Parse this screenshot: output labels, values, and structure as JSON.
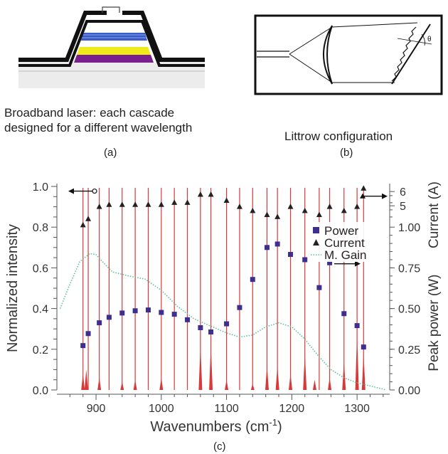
{
  "panel_a": {
    "caption_line1": "Broadband laser: each cascade",
    "caption_line2": "designed for a different wavelength",
    "tag": "(a)",
    "layer_colors": [
      "#3a5cc8",
      "#f2ea18",
      "#7a1f8e"
    ]
  },
  "panel_b": {
    "caption": "Littrow configuration",
    "tag": "(b)",
    "angle_label": "θ"
  },
  "panel_c": {
    "tag": "(c)",
    "chart_data": {
      "type": "line",
      "xlabel_main": "Wavenumbers (cm",
      "xlabel_exp": "-1",
      "xlabel_end": ")",
      "ylabel_left": "Normalized intensity",
      "ylabel_right_top": "Current (A)",
      "ylabel_right_bottom": "Peak power (W)",
      "xlim": [
        840,
        1350
      ],
      "ylim": [
        0,
        1.0
      ],
      "x_ticks": [
        900,
        1000,
        1100,
        1200,
        1300
      ],
      "y_ticks_left": [
        0.0,
        0.2,
        0.4,
        0.6,
        0.8,
        1.0
      ],
      "y_ticks_left_labels": [
        "0.0",
        "0.2",
        "0.4",
        "0.6",
        "0.8",
        "1.0"
      ],
      "current_ticks": [
        {
          "label": "6",
          "y": 0.975
        },
        {
          "label": "5",
          "y": 0.905
        }
      ],
      "power_ticks": [
        {
          "label": "1.00",
          "y": 0.8
        },
        {
          "label": "0.75",
          "y": 0.6
        },
        {
          "label": "0.50",
          "y": 0.4
        },
        {
          "label": "0.25",
          "y": 0.2
        },
        {
          "label": "0.00",
          "y": 0.0
        }
      ],
      "legend": [
        {
          "name": "Power",
          "marker": "square",
          "color": "#3c2f8f"
        },
        {
          "name": "Current",
          "marker": "triangle",
          "color": "#222222"
        },
        {
          "name": "M. Gain",
          "marker": "dotted-line",
          "color": "#5cbf9b"
        }
      ],
      "laser_lines": {
        "color": "#d63a3a",
        "x": [
          880,
          888,
          905,
          920,
          940,
          960,
          980,
          1000,
          1020,
          1040,
          1060,
          1076,
          1100,
          1120,
          1140,
          1162,
          1178,
          1198,
          1220,
          1242,
          1258,
          1280,
          1300,
          1310
        ]
      },
      "spectrum_peaks": [
        {
          "x": 880,
          "y": 0.08
        },
        {
          "x": 885,
          "y": 0.1
        },
        {
          "x": 905,
          "y": 0.06
        },
        {
          "x": 940,
          "y": 0.04
        },
        {
          "x": 960,
          "y": 0.05
        },
        {
          "x": 1000,
          "y": 0.06
        },
        {
          "x": 1060,
          "y": 0.22
        },
        {
          "x": 1076,
          "y": 0.22
        },
        {
          "x": 1100,
          "y": 0.05
        },
        {
          "x": 1140,
          "y": 0.03
        },
        {
          "x": 1162,
          "y": 0.12
        },
        {
          "x": 1178,
          "y": 0.12
        },
        {
          "x": 1198,
          "y": 0.08
        },
        {
          "x": 1220,
          "y": 0.18
        },
        {
          "x": 1235,
          "y": 0.05
        },
        {
          "x": 1258,
          "y": 0.06
        },
        {
          "x": 1280,
          "y": 0.14
        },
        {
          "x": 1300,
          "y": 0.28
        },
        {
          "x": 1310,
          "y": 0.18
        }
      ],
      "series": [
        {
          "name": "Power",
          "x": [
            880,
            888,
            905,
            920,
            940,
            960,
            980,
            1000,
            1020,
            1040,
            1060,
            1076,
            1100,
            1120,
            1140,
            1162,
            1178,
            1198,
            1220,
            1242,
            1258,
            1280,
            1300,
            1310
          ],
          "y": [
            0.218,
            0.277,
            0.33,
            0.357,
            0.378,
            0.389,
            0.393,
            0.381,
            0.372,
            0.345,
            0.306,
            0.285,
            0.325,
            0.405,
            0.543,
            0.7,
            0.717,
            0.666,
            0.64,
            0.503,
            0.625,
            0.375,
            0.316,
            0.211
          ]
        },
        {
          "name": "Current",
          "x": [
            880,
            888,
            905,
            920,
            940,
            960,
            980,
            1000,
            1020,
            1040,
            1060,
            1076,
            1100,
            1120,
            1140,
            1162,
            1178,
            1198,
            1220,
            1242,
            1258,
            1280,
            1300,
            1310
          ],
          "y": [
            0.81,
            0.84,
            0.9,
            0.91,
            0.91,
            0.91,
            0.91,
            0.91,
            0.92,
            0.92,
            0.96,
            0.96,
            0.93,
            0.9,
            0.88,
            0.86,
            0.85,
            0.9,
            0.88,
            0.86,
            0.9,
            0.88,
            0.9,
            0.99
          ]
        },
        {
          "name": "M. Gain",
          "x": [
            845,
            860,
            875,
            890,
            900,
            910,
            925,
            950,
            975,
            1000,
            1025,
            1050,
            1075,
            1100,
            1120,
            1140,
            1160,
            1180,
            1200,
            1220,
            1240,
            1260,
            1280,
            1300,
            1320,
            1345
          ],
          "y": [
            0.4,
            0.52,
            0.63,
            0.67,
            0.665,
            0.63,
            0.58,
            0.56,
            0.545,
            0.49,
            0.41,
            0.35,
            0.315,
            0.28,
            0.26,
            0.27,
            0.31,
            0.33,
            0.31,
            0.25,
            0.17,
            0.1,
            0.06,
            0.035,
            0.02,
            0.0
          ]
        }
      ]
    }
  }
}
